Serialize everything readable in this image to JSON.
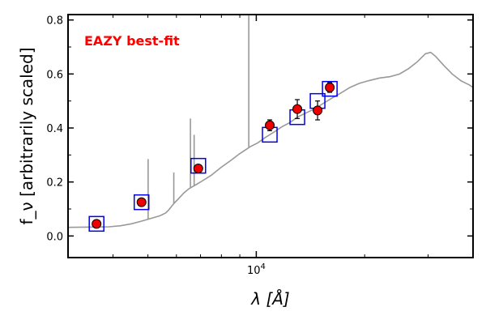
{
  "chart_data": {
    "type": "scatter",
    "title": "",
    "xlabel": "λ [Å]",
    "ylabel": "f_ν [arbitrarily scaled]",
    "xscale": "log",
    "xlim": [
      3000,
      40000
    ],
    "ylim": [
      -0.08,
      0.82
    ],
    "yticks": [
      0.0,
      0.2,
      0.4,
      0.6,
      0.8
    ],
    "ytick_labels": [
      "0.0",
      "0.2",
      "0.4",
      "0.6",
      "0.8"
    ],
    "xticks": [
      10000
    ],
    "xtick_labels": [
      "10^4"
    ],
    "grid": false,
    "annotation": {
      "text": "EAZY best-fit",
      "color": "#ff0000"
    },
    "series": [
      {
        "kind": "template",
        "color": "#999999",
        "points": [
          [
            3000,
            0.032
          ],
          [
            3500,
            0.033
          ],
          [
            3900,
            0.034
          ],
          [
            4200,
            0.038
          ],
          [
            4500,
            0.045
          ],
          [
            4800,
            0.055
          ],
          [
            5100,
            0.065
          ],
          [
            5400,
            0.075
          ],
          [
            5600,
            0.085
          ],
          [
            5700,
            0.095
          ],
          [
            5900,
            0.12
          ],
          [
            6100,
            0.14
          ],
          [
            6300,
            0.16
          ],
          [
            6500,
            0.175
          ],
          [
            6800,
            0.19
          ],
          [
            7100,
            0.205
          ],
          [
            7500,
            0.225
          ],
          [
            8000,
            0.255
          ],
          [
            8500,
            0.28
          ],
          [
            9000,
            0.305
          ],
          [
            9600,
            0.33
          ],
          [
            10100,
            0.345
          ],
          [
            10600,
            0.365
          ],
          [
            11200,
            0.385
          ],
          [
            11800,
            0.405
          ],
          [
            12400,
            0.42
          ],
          [
            13000,
            0.44
          ],
          [
            13700,
            0.455
          ],
          [
            14500,
            0.47
          ],
          [
            15300,
            0.49
          ],
          [
            16200,
            0.51
          ],
          [
            17200,
            0.53
          ],
          [
            18200,
            0.55
          ],
          [
            19300,
            0.565
          ],
          [
            20500,
            0.575
          ],
          [
            22000,
            0.585
          ],
          [
            23500,
            0.59
          ],
          [
            25000,
            0.6
          ],
          [
            26500,
            0.62
          ],
          [
            28000,
            0.645
          ],
          [
            29500,
            0.675
          ],
          [
            30500,
            0.68
          ],
          [
            31500,
            0.665
          ],
          [
            33000,
            0.635
          ],
          [
            35000,
            0.6
          ],
          [
            37000,
            0.575
          ],
          [
            39000,
            0.56
          ],
          [
            40000,
            0.55
          ]
        ],
        "emission_lines": [
          {
            "x": 5007,
            "peak": 0.285
          },
          {
            "x": 5900,
            "peak": 0.235
          },
          {
            "x": 6563,
            "peak": 0.435
          },
          {
            "x": 6720,
            "peak": 0.375
          },
          {
            "x": 9532,
            "peak": 0.82
          }
        ]
      },
      {
        "kind": "model_photometry",
        "marker": "open-square",
        "color": "#0000ee",
        "x": [
          3600,
          4800,
          6900,
          10900,
          13000,
          14800,
          16000
        ],
        "y": [
          0.045,
          0.125,
          0.26,
          0.375,
          0.44,
          0.5,
          0.545
        ]
      },
      {
        "kind": "observed_photometry",
        "marker": "filled-circle",
        "color": "#ee0000",
        "x": [
          3600,
          4800,
          6900,
          10900,
          13000,
          14800,
          16000
        ],
        "y": [
          0.045,
          0.125,
          0.25,
          0.41,
          0.47,
          0.465,
          0.55
        ],
        "yerr": [
          0.008,
          0.008,
          0.012,
          0.02,
          0.035,
          0.035,
          0.018
        ]
      }
    ]
  }
}
